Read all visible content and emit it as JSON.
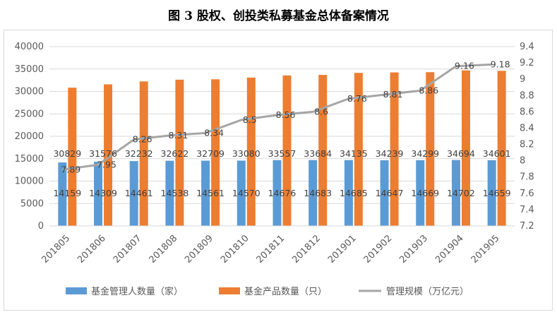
{
  "title": "图 3 股权、创投类私募基金总体备案情况",
  "chart_data": {
    "type": "bar",
    "categories": [
      "201805",
      "201806",
      "201807",
      "201808",
      "201809",
      "201810",
      "201811",
      "201812",
      "201901",
      "201902",
      "201903",
      "201904",
      "201905"
    ],
    "series": [
      {
        "name": "基金管理人数量（家）",
        "type": "bar",
        "axis": "left",
        "color": "#5b9bd5",
        "values": [
          14159,
          14309,
          14461,
          14538,
          14561,
          14570,
          14676,
          14683,
          14685,
          14647,
          14669,
          14702,
          14659
        ]
      },
      {
        "name": "基金产品数量（只）",
        "type": "bar",
        "axis": "left",
        "color": "#ed7d31",
        "values": [
          30829,
          31576,
          32232,
          32622,
          32709,
          33080,
          33557,
          33684,
          34135,
          34239,
          34299,
          34694,
          34601
        ]
      },
      {
        "name": "管理规模（万亿元）",
        "type": "line",
        "axis": "right",
        "color": "#a5a5a5",
        "values": [
          7.89,
          7.95,
          8.26,
          8.31,
          8.34,
          8.5,
          8.56,
          8.6,
          8.76,
          8.81,
          8.86,
          9.16,
          9.18
        ]
      }
    ],
    "y_left": {
      "min": 0,
      "max": 40000,
      "ticks": [
        0,
        5000,
        10000,
        15000,
        20000,
        25000,
        30000,
        35000,
        40000
      ]
    },
    "y_right": {
      "min": 7.2,
      "max": 9.4,
      "ticks": [
        "7.2",
        "7.4",
        "7.6",
        "7.8",
        "8",
        "8.2",
        "8.4",
        "8.6",
        "8.8",
        "9",
        "9.2",
        "9.4"
      ]
    },
    "grid": true,
    "legend_position": "bottom"
  }
}
